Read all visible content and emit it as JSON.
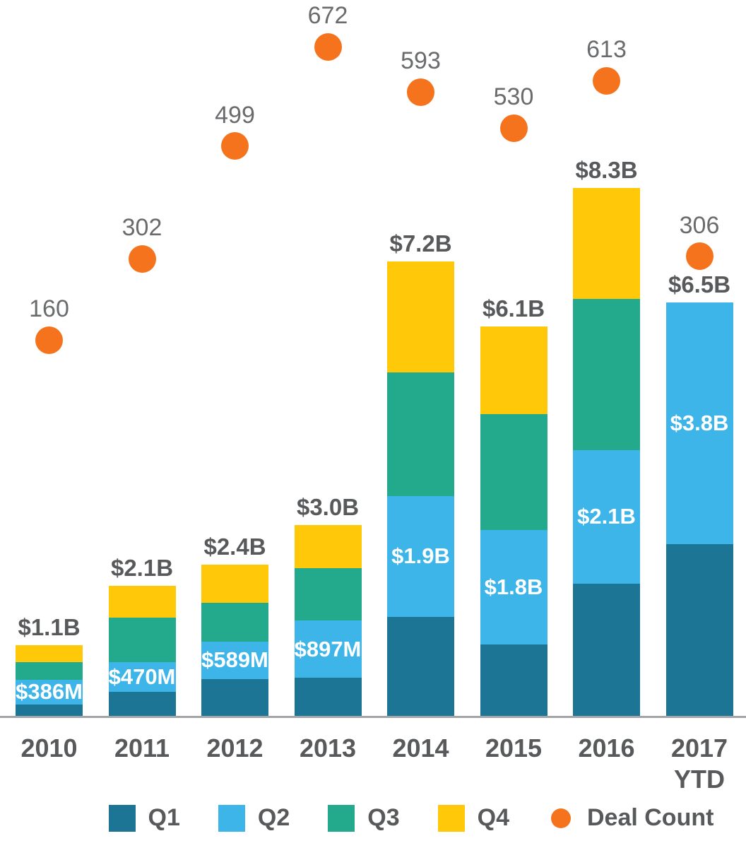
{
  "chart_data": {
    "type": "bar",
    "variant": "stacked-columns-with-scatter-overlay",
    "title": "",
    "xlabel": "",
    "ylabel": "",
    "grid": false,
    "y_axis_visible": false,
    "legend_position": "bottom",
    "categories": [
      "2010",
      "2011",
      "2012",
      "2013",
      "2014",
      "2015",
      "2016",
      "2017 YTD"
    ],
    "series": [
      {
        "name": "Q1",
        "color": "#1D7596",
        "values_usd_m": [
          180,
          380,
          580,
          600,
          1560,
          1120,
          2080,
          2700
        ]
      },
      {
        "name": "Q2",
        "color": "#3EB5E8",
        "values_usd_m": [
          386,
          470,
          589,
          897,
          1900,
          1800,
          2100,
          3800
        ]
      },
      {
        "name": "Q3",
        "color": "#23AA8D",
        "values_usd_m": [
          280,
          700,
          610,
          820,
          1940,
          1820,
          2380,
          0
        ]
      },
      {
        "name": "Q4",
        "color": "#FFC808",
        "values_usd_m": [
          260,
          500,
          600,
          680,
          1750,
          1380,
          1740,
          0
        ]
      }
    ],
    "deal_count_series": {
      "name": "Deal Count",
      "color": "#F6731D",
      "values": [
        160,
        302,
        499,
        672,
        593,
        530,
        613,
        306
      ]
    },
    "bar_total_labels": [
      "$1.1B",
      "$2.1B",
      "$2.4B",
      "$3.0B",
      "$7.2B",
      "$6.1B",
      "$8.3B",
      "$6.5B"
    ],
    "q2_segment_labels": [
      "$386M",
      "$470M",
      "$589M",
      "$897M",
      "$1.9B",
      "$1.8B",
      "$2.1B",
      "$3.8B"
    ],
    "deal_count_labels": [
      "160",
      "302",
      "499",
      "672",
      "593",
      "530",
      "613",
      "306"
    ]
  },
  "x_axis": {
    "tick_labels": [
      [
        "2010"
      ],
      [
        "2011"
      ],
      [
        "2012"
      ],
      [
        "2013"
      ],
      [
        "2014"
      ],
      [
        "2015"
      ],
      [
        "2016"
      ],
      [
        "2017",
        "YTD"
      ]
    ]
  },
  "legend": {
    "items": [
      {
        "label": "Q1",
        "swatch": "square",
        "color": "#1D7596"
      },
      {
        "label": "Q2",
        "swatch": "square",
        "color": "#3EB5E8"
      },
      {
        "label": "Q3",
        "swatch": "square",
        "color": "#23AA8D"
      },
      {
        "label": "Q4",
        "swatch": "square",
        "color": "#FFC808"
      },
      {
        "label": "Deal Count",
        "swatch": "circle",
        "color": "#F6731D"
      }
    ]
  },
  "styles": {
    "label_dark": "#58595B",
    "count_label_color": "#6A6B6D",
    "bar_value_label_color": "#FFFFFF",
    "axis_line_color": "#A2A4A7",
    "background": "#FFFFFF"
  }
}
